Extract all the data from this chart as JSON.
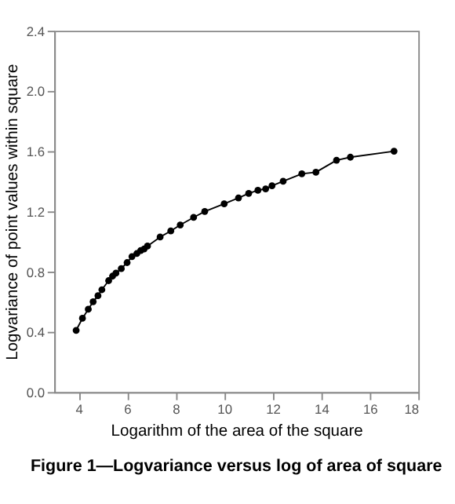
{
  "chart_data": {
    "type": "line",
    "title": "Figure 1—Logvariance versus log of area of square",
    "xlabel": "Logarithm of the area of the square",
    "ylabel": "Logvariance of point values within square",
    "x": [
      3.9,
      4.16,
      4.4,
      4.6,
      4.8,
      4.96,
      5.24,
      5.4,
      5.54,
      5.76,
      6.0,
      6.2,
      6.4,
      6.56,
      6.7,
      6.84,
      7.36,
      7.8,
      8.19,
      8.74,
      9.2,
      10.0,
      10.59,
      11.01,
      11.39,
      11.71,
      11.97,
      12.43,
      13.2,
      13.78,
      14.63,
      15.2,
      17.0
    ],
    "series": [
      {
        "color": "#000000",
        "values": [
          0.41,
          0.49,
          0.55,
          0.6,
          0.64,
          0.68,
          0.74,
          0.77,
          0.79,
          0.82,
          0.86,
          0.9,
          0.92,
          0.94,
          0.95,
          0.97,
          1.03,
          1.07,
          1.11,
          1.16,
          1.2,
          1.25,
          1.29,
          1.32,
          1.34,
          1.35,
          1.37,
          1.4,
          1.45,
          1.46,
          1.54,
          1.56,
          1.6
        ]
      }
    ],
    "xlim": [
      3,
      18
    ],
    "xticks": [
      4,
      6,
      8,
      10,
      12,
      14,
      16,
      18
    ],
    "ylim": [
      0,
      2.4
    ],
    "yticks": [
      {
        "value": 0,
        "label": "0.0"
      },
      {
        "value": 0.4,
        "label": "0.4"
      },
      {
        "value": 0.8,
        "label": "0.8"
      },
      {
        "value": 1.2,
        "label": "1.2"
      },
      {
        "value": 1.6,
        "label": "1.6"
      },
      {
        "value": 2.0,
        "label": "2.0"
      },
      {
        "value": 2.4,
        "label": "2.4"
      }
    ],
    "grid": false,
    "marker": "circle",
    "line_style": "solid"
  }
}
